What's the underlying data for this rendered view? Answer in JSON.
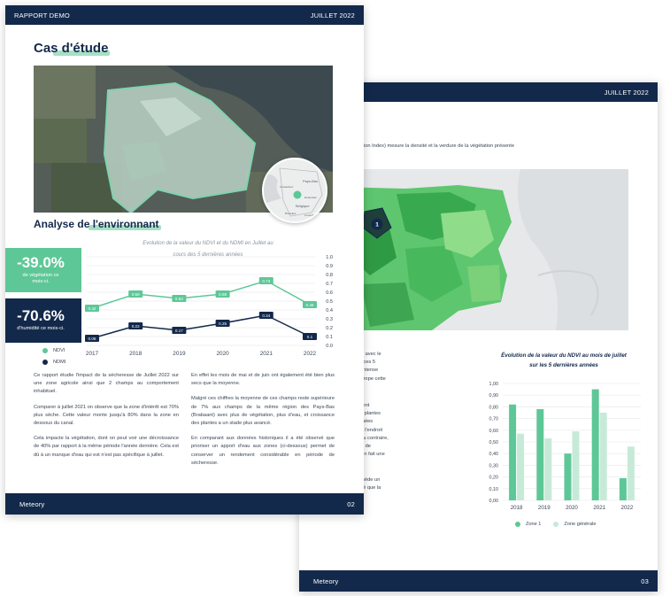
{
  "page_back": {
    "header_right": "JUILLET 2022",
    "intro": "ormalized Difference Vegetation Index) mesure la densité et la verdure de la végétation présente\nage satellite.",
    "marker": "1",
    "col_text": [
      "e mois de juillet a été le mois avec le\n croissance de végétation de ces 5\nnnées. Cela s'explique par l'intense\nsécheresse qui a touché l'Europe cette",
      "la zone 1 a été particulièrement\nun niveau de croissance des plantes\nare à celui-ci observé les années\nici, le pourtour de la zone est l'endroit\nation se développe le plus. Au contraire,\nchamp on observe un niveau de\nérieur à la moyenne, ce qui en fait une\nller.",
      "la surface totale étudiée possède un\nveau de végétation plus élevé que la\na région."
    ],
    "chart_title": "Évolution de la valeur du NDVI au mois de juillet\nsur les 5 dernières années",
    "footer_brand": "Meteory",
    "page_number": "03"
  },
  "page_front": {
    "header_left": "RAPPORT DEMO",
    "header_right": "JUILLET 2022",
    "case_title": "Cas d'étude",
    "section_title": "Analyse de l'environnant",
    "inset_labels": [
      "Pays-Bas",
      "Belgique",
      "Amsterdam",
      "Rotterdam",
      "Bruxelles",
      "Luxembourg"
    ],
    "stat_veg": {
      "value": "-39.0%",
      "label": "de végétation ce\nmois-ci."
    },
    "stat_hum": {
      "value": "-70.6%",
      "label": "d'humidité ce mois-ci."
    },
    "chart_title": "Evolution de la valeur du NDVI et du NDMI en Juillet au\ncours des 5 dernières années",
    "legend": [
      "NDVI",
      "NDMI"
    ],
    "col1": [
      "Ce rapport étudie l'impact de la sécheresse de Juillet 2022 sur une zone agricole ainsi que 2 champs au comportement inhabituel.",
      "Comparer à juillet 2021 on observe que la zone d'intérêt est 70% plus sèche. Cette valeur monte jusqu'à 80% dans la zone en dessous du canal.",
      "Cela impacte la végétation, dont on peut voir une décroissance de 40% par rapport à la même période l'année dernière. Cela est dû à un manque d'eau qui est n'est pas spécifique à juillet."
    ],
    "col2": [
      "En effet les mois de mai et de juin ont également été bien plus secs que la moyenne.",
      "Malgré ces chiffres la moyenne de ces champs reste supérieure de 7% aux champs de la même région des Pays-Bas (Brabaant) avec plus de végétation, plus d'eau, et croissance des plantes a un stade plus avancé.",
      "En comparant aux données historiques il a été observé que prioriser un apport d'eau aux zones (ci-dessous) permet de conserver un rendement considérable en période de sécheresse."
    ],
    "footer_brand": "Meteory",
    "page_number": "02"
  },
  "colors": {
    "navy": "#13294b",
    "green": "#5ec797",
    "light_green": "#c7ead8",
    "accent": "#7fd3ad"
  },
  "chart_data": [
    {
      "type": "line",
      "title": "Evolution de la valeur du NDVI et du NDMI en Juillet au cours des 5 dernières années",
      "categories": [
        "2017",
        "2018",
        "2019",
        "2020",
        "2021",
        "2022"
      ],
      "ylim": [
        0,
        1.0
      ],
      "yticks": [
        "0.0",
        "0.1",
        "0.2",
        "0.3",
        "0.4",
        "0.5",
        "0.6",
        "0.7",
        "0.8",
        "0.9",
        "1.0"
      ],
      "series": [
        {
          "name": "NDVI",
          "values": [
            0.42,
            0.58,
            0.53,
            0.58,
            0.73,
            0.46
          ],
          "labels": [
            "0.42",
            "0.58",
            "0.53",
            "0.58",
            "0.73",
            "0.46"
          ]
        },
        {
          "name": "NDMI",
          "values": [
            0.08,
            0.22,
            0.17,
            0.25,
            0.34,
            0.1
          ],
          "labels": [
            "0.08",
            "0.22",
            "0.17",
            "0.25",
            "0.34",
            "0.1"
          ]
        }
      ]
    },
    {
      "type": "bar",
      "title": "Évolution de la valeur du NDVI au mois de juillet sur les 5 dernières années",
      "categories": [
        "2018",
        "2019",
        "2020",
        "2021",
        "2022"
      ],
      "ylim": [
        0,
        1.0
      ],
      "yticks": [
        "0,00",
        "0,10",
        "0,20",
        "0,30",
        "0,40",
        "0,50",
        "0,60",
        "0,70",
        "0,80",
        "0,90",
        "1,00"
      ],
      "series": [
        {
          "name": "Zone 1",
          "values": [
            0.82,
            0.78,
            0.4,
            0.95,
            0.19
          ]
        },
        {
          "name": "Zone générale",
          "values": [
            0.57,
            0.53,
            0.59,
            0.75,
            0.46
          ]
        }
      ]
    }
  ]
}
